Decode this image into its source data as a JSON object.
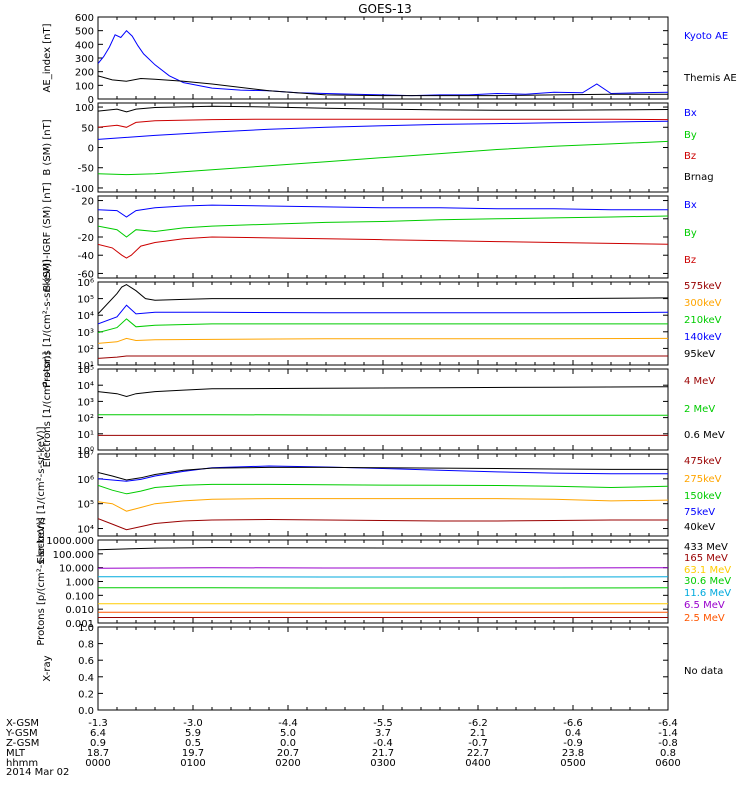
{
  "title": "GOES-13",
  "date_label": "2014 Mar 02",
  "colors": {
    "black": "#000000",
    "blue": "#0000ff",
    "green": "#00cc00",
    "red": "#cc0000",
    "darkred": "#990000",
    "orange": "#ffa500",
    "cyan": "#00aadd",
    "yellow": "#e6d800",
    "purple": "#9900cc",
    "orange_red": "#ff5500",
    "gold": "#ffcc00",
    "brown": "#8b2500"
  },
  "chart_data": [
    {
      "type": "line",
      "id": "ae",
      "ylabel": "AE_index [nT]",
      "scale": "linear",
      "ylim": [
        0,
        600
      ],
      "yticks": [
        "0",
        "100",
        "200",
        "300",
        "400",
        "500",
        "600"
      ],
      "series": [
        {
          "name": "Kyoto AE",
          "color": "#0000ff",
          "x": [
            0,
            6,
            12,
            18,
            24,
            30,
            36,
            42,
            48,
            60,
            75,
            90,
            120,
            150,
            180,
            210,
            240,
            270,
            300,
            330,
            360,
            390,
            420,
            450,
            480,
            510,
            525,
            540,
            570,
            600
          ],
          "y": [
            260,
            310,
            380,
            470,
            450,
            500,
            460,
            390,
            330,
            250,
            170,
            120,
            80,
            65,
            60,
            45,
            40,
            35,
            30,
            25,
            30,
            30,
            40,
            35,
            50,
            45,
            110,
            40,
            45,
            50
          ]
        },
        {
          "name": "Themis AE",
          "color": "#000000",
          "x": [
            0,
            15,
            30,
            45,
            60,
            90,
            120,
            180,
            240,
            300,
            360,
            420,
            480,
            540,
            600
          ],
          "y": [
            170,
            140,
            130,
            150,
            145,
            130,
            110,
            60,
            30,
            25,
            25,
            25,
            30,
            35,
            35
          ]
        }
      ]
    },
    {
      "type": "line",
      "id": "b_sm",
      "ylabel": "B (SM) [nT]",
      "scale": "linear",
      "ylim": [
        -110,
        110
      ],
      "yticks": [
        "-100",
        "-50",
        "0",
        "50",
        "100"
      ],
      "series": [
        {
          "name": "Bx",
          "color": "#0000ff",
          "x": [
            0,
            30,
            60,
            120,
            180,
            240,
            300,
            360,
            420,
            480,
            540,
            600
          ],
          "y": [
            20,
            25,
            30,
            38,
            45,
            50,
            54,
            57,
            59,
            61,
            63,
            65
          ]
        },
        {
          "name": "By",
          "color": "#00cc00",
          "x": [
            0,
            30,
            60,
            120,
            180,
            240,
            300,
            360,
            420,
            480,
            540,
            600
          ],
          "y": [
            -65,
            -67,
            -65,
            -55,
            -45,
            -35,
            -25,
            -15,
            -5,
            3,
            9,
            15
          ]
        },
        {
          "name": "Bz",
          "color": "#cc0000",
          "x": [
            0,
            20,
            30,
            40,
            60,
            120,
            180,
            240,
            300,
            360,
            420,
            480,
            540,
            600
          ],
          "y": [
            50,
            55,
            50,
            62,
            66,
            69,
            70,
            70,
            70,
            70,
            70,
            70,
            70,
            69
          ]
        },
        {
          "name": "Brnag",
          "color": "#000000",
          "x": [
            0,
            20,
            30,
            40,
            60,
            120,
            180,
            240,
            300,
            360,
            420,
            480,
            540,
            600
          ],
          "y": [
            90,
            95,
            88,
            95,
            99,
            102,
            100,
            97,
            95,
            93,
            92,
            92,
            93,
            94
          ]
        }
      ]
    },
    {
      "type": "line",
      "id": "b_igrf",
      "ylabel": "B (SM)-IGRF (SM) [nT]",
      "scale": "linear",
      "ylim": [
        -65,
        25
      ],
      "yticks": [
        "-60",
        "-40",
        "-20",
        "0",
        "20"
      ],
      "series": [
        {
          "name": "Bx",
          "color": "#0000ff",
          "x": [
            0,
            20,
            30,
            40,
            60,
            90,
            120,
            180,
            240,
            300,
            360,
            420,
            480,
            540,
            600
          ],
          "y": [
            10,
            9,
            2,
            9,
            12,
            14,
            15,
            14,
            13,
            12,
            12,
            11,
            11,
            10,
            10
          ]
        },
        {
          "name": "By",
          "color": "#00cc00",
          "x": [
            0,
            20,
            30,
            40,
            60,
            90,
            120,
            180,
            240,
            300,
            360,
            420,
            480,
            540,
            600
          ],
          "y": [
            -8,
            -12,
            -20,
            -12,
            -14,
            -10,
            -8,
            -6,
            -4,
            -3,
            -1,
            0,
            1,
            2,
            3
          ]
        },
        {
          "name": "Bz",
          "color": "#cc0000",
          "x": [
            0,
            15,
            25,
            30,
            35,
            45,
            60,
            90,
            120,
            180,
            240,
            300,
            360,
            420,
            480,
            540,
            600
          ],
          "y": [
            -28,
            -32,
            -40,
            -43,
            -40,
            -30,
            -26,
            -22,
            -20,
            -21,
            -22,
            -23,
            -24,
            -25,
            -26,
            -27,
            -28
          ]
        }
      ]
    },
    {
      "type": "line",
      "id": "protons_low",
      "ylabel": "Protons [1/(cm²-s-sr-keV)]",
      "scale": "log",
      "ylim": [
        10,
        1000000
      ],
      "yticks": [
        "10¹",
        "10²",
        "10³",
        "10⁴",
        "10⁵",
        "10⁶"
      ],
      "series": [
        {
          "name": "575keV",
          "color": "#990000",
          "x": [
            0,
            20,
            30,
            40,
            60,
            120,
            240,
            360,
            480,
            600
          ],
          "y": [
            25,
            30,
            35,
            35,
            35,
            35,
            35,
            35,
            35,
            35
          ]
        },
        {
          "name": "300keV",
          "color": "#ffa500",
          "x": [
            0,
            20,
            30,
            40,
            60,
            120,
            240,
            360,
            480,
            600
          ],
          "y": [
            200,
            250,
            400,
            300,
            330,
            350,
            380,
            380,
            380,
            400
          ]
        },
        {
          "name": "210keV",
          "color": "#00cc00",
          "x": [
            0,
            20,
            30,
            40,
            60,
            120,
            240,
            360,
            480,
            600
          ],
          "y": [
            900,
            1800,
            6000,
            2000,
            2500,
            3000,
            3000,
            3000,
            3000,
            3000
          ]
        },
        {
          "name": "140keV",
          "color": "#0000ff",
          "x": [
            0,
            20,
            30,
            40,
            60,
            120,
            240,
            360,
            480,
            600
          ],
          "y": [
            3000,
            8000,
            40000,
            12000,
            15000,
            15000,
            14000,
            14000,
            14000,
            15000
          ]
        },
        {
          "name": "95keV",
          "color": "#000000",
          "x": [
            0,
            20,
            25,
            30,
            40,
            50,
            60,
            90,
            120,
            240,
            360,
            480,
            600
          ],
          "y": [
            12000,
            200000,
            500000,
            700000,
            300000,
            100000,
            80000,
            90000,
            100000,
            100000,
            100000,
            100000,
            110000
          ]
        }
      ]
    },
    {
      "type": "line",
      "id": "electrons_high",
      "ylabel": "Electrons [1/(cm²-s-sr)]",
      "scale": "log",
      "ylim": [
        1,
        100000
      ],
      "yticks": [
        "10⁰",
        "10¹",
        "10²",
        "10³",
        "10⁴",
        "10⁵"
      ],
      "series": [
        {
          "name": "4 MeV",
          "color": "#990000",
          "x": [
            0,
            60,
            120,
            180,
            240,
            300,
            360,
            420,
            480,
            540,
            600
          ],
          "y": [
            8,
            8,
            8,
            8,
            8,
            8,
            8,
            8,
            8,
            8,
            8
          ]
        },
        {
          "name": "2 MeV",
          "color": "#00cc00",
          "x": [
            0,
            60,
            120,
            240,
            360,
            480,
            600
          ],
          "y": [
            150,
            150,
            150,
            145,
            140,
            140,
            140
          ]
        },
        {
          "name": "0.6 MeV",
          "color": "#000000",
          "x": [
            0,
            20,
            30,
            40,
            60,
            90,
            120,
            240,
            360,
            480,
            600
          ],
          "y": [
            4000,
            3000,
            2000,
            3000,
            4000,
            5000,
            6000,
            6500,
            7000,
            7500,
            8000
          ]
        }
      ]
    },
    {
      "type": "line",
      "id": "electrons_low",
      "ylabel": "Electrons [1/(cm²-s-sr-keV)]",
      "scale": "log",
      "ylim": [
        5000,
        10000000
      ],
      "yticks": [
        "10⁴",
        "10⁵",
        "10⁶",
        "10⁷"
      ],
      "series": [
        {
          "name": "475keV",
          "color": "#990000",
          "x": [
            0,
            15,
            30,
            45,
            60,
            90,
            120,
            180,
            240,
            300,
            360,
            420,
            480,
            540,
            600
          ],
          "y": [
            25000,
            15000,
            9000,
            12000,
            16000,
            20000,
            22000,
            23000,
            22000,
            21000,
            20000,
            20000,
            21000,
            22000,
            22000
          ]
        },
        {
          "name": "275keV",
          "color": "#ffa500",
          "x": [
            0,
            15,
            30,
            45,
            60,
            90,
            120,
            180,
            240,
            300,
            360,
            420,
            480,
            540,
            600
          ],
          "y": [
            120000,
            100000,
            50000,
            70000,
            100000,
            130000,
            150000,
            160000,
            160000,
            160000,
            160000,
            160000,
            150000,
            130000,
            140000
          ]
        },
        {
          "name": "150keV",
          "color": "#00cc00",
          "x": [
            0,
            15,
            30,
            45,
            60,
            90,
            120,
            180,
            240,
            300,
            360,
            420,
            480,
            540,
            600
          ],
          "y": [
            550000,
            350000,
            250000,
            320000,
            450000,
            550000,
            600000,
            600000,
            580000,
            560000,
            550000,
            540000,
            500000,
            450000,
            500000
          ]
        },
        {
          "name": "75keV",
          "color": "#0000ff",
          "x": [
            0,
            15,
            30,
            45,
            60,
            90,
            120,
            180,
            240,
            300,
            360,
            420,
            480,
            540,
            600
          ],
          "y": [
            1000000,
            900000,
            800000,
            950000,
            1300000,
            2000000,
            2800000,
            3300000,
            3000000,
            2600000,
            2200000,
            1900000,
            1700000,
            1600000,
            1600000
          ]
        },
        {
          "name": "40keV",
          "color": "#000000",
          "x": [
            0,
            15,
            30,
            45,
            60,
            90,
            120,
            180,
            240,
            300,
            360,
            420,
            480,
            540,
            600
          ],
          "y": [
            1800000,
            1300000,
            900000,
            1100000,
            1500000,
            2200000,
            2700000,
            2900000,
            2900000,
            2800000,
            2700000,
            2600000,
            2500000,
            2400000,
            2400000
          ]
        }
      ]
    },
    {
      "type": "line",
      "id": "protons_high",
      "ylabel": "Protons [p/(cm²-s-sr-keV)]",
      "scale": "log",
      "ylim": [
        0.001,
        1000
      ],
      "yticks": [
        "0.001",
        "0.010",
        "0.100",
        "1.000",
        "10.000",
        "100.000",
        "1000.000"
      ],
      "series": [
        {
          "name": "433 MeV",
          "color": "#000000",
          "x": [
            0,
            60,
            120,
            240,
            360,
            480,
            600
          ],
          "y": [
            200,
            260,
            280,
            270,
            260,
            250,
            250
          ]
        },
        {
          "name": "165 MeV",
          "color": "#990000",
          "x": [
            0,
            120,
            240,
            360,
            480,
            600
          ],
          "y": [
            0.0025,
            0.0025,
            0.0025,
            0.0025,
            0.0025,
            0.0025
          ]
        },
        {
          "name": "63.1 MeV",
          "color": "#ffcc00",
          "x": [
            0,
            120,
            240,
            360,
            480,
            600
          ],
          "y": [
            0.025,
            0.025,
            0.024,
            0.024,
            0.024,
            0.025
          ]
        },
        {
          "name": "30.6 MeV",
          "color": "#00cc00",
          "x": [
            0,
            120,
            240,
            360,
            480,
            600
          ],
          "y": [
            0.35,
            0.35,
            0.34,
            0.34,
            0.34,
            0.35
          ]
        },
        {
          "name": "11.6 MeV",
          "color": "#00aadd",
          "x": [
            0,
            120,
            240,
            360,
            480,
            600
          ],
          "y": [
            2.2,
            2.2,
            2.1,
            2.1,
            2.1,
            2.2
          ]
        },
        {
          "name": "6.5 MeV",
          "color": "#9900cc",
          "x": [
            0,
            120,
            240,
            360,
            480,
            600
          ],
          "y": [
            9,
            10,
            9.5,
            9.5,
            9.5,
            10
          ]
        },
        {
          "name": "2.5 MeV",
          "color": "#ff5500",
          "x": [
            0,
            120,
            240,
            360,
            480,
            600
          ],
          "y": [
            0.006,
            0.006,
            0.006,
            0.006,
            0.006,
            0.006
          ]
        }
      ]
    },
    {
      "type": "line",
      "id": "xray",
      "ylabel": "X-ray",
      "scale": "linear",
      "ylim": [
        0,
        1
      ],
      "yticks": [
        "0.0",
        "0.2",
        "0.4",
        "0.6",
        "0.8",
        "1.0"
      ],
      "note": "No data",
      "series": []
    }
  ],
  "axis_footer": {
    "row_labels": [
      "X-GSM",
      "Y-GSM",
      "Z-GSM",
      "MLT",
      "hhmm"
    ],
    "columns": [
      [
        "-1.3",
        "6.4",
        "0.9",
        "18.7",
        "0000"
      ],
      [
        "-3.0",
        "5.9",
        "0.5",
        "19.7",
        "0100"
      ],
      [
        "-4.4",
        "5.0",
        "0.0",
        "20.7",
        "0200"
      ],
      [
        "-5.5",
        "3.7",
        "-0.4",
        "21.7",
        "0300"
      ],
      [
        "-6.2",
        "2.1",
        "-0.7",
        "22.7",
        "0400"
      ],
      [
        "-6.6",
        "0.4",
        "-0.9",
        "23.8",
        "0500"
      ],
      [
        "-6.4",
        "-1.4",
        "-0.8",
        "0.8",
        "0600"
      ]
    ],
    "x_minutes": [
      0,
      100,
      200,
      300,
      400,
      500,
      600
    ]
  }
}
